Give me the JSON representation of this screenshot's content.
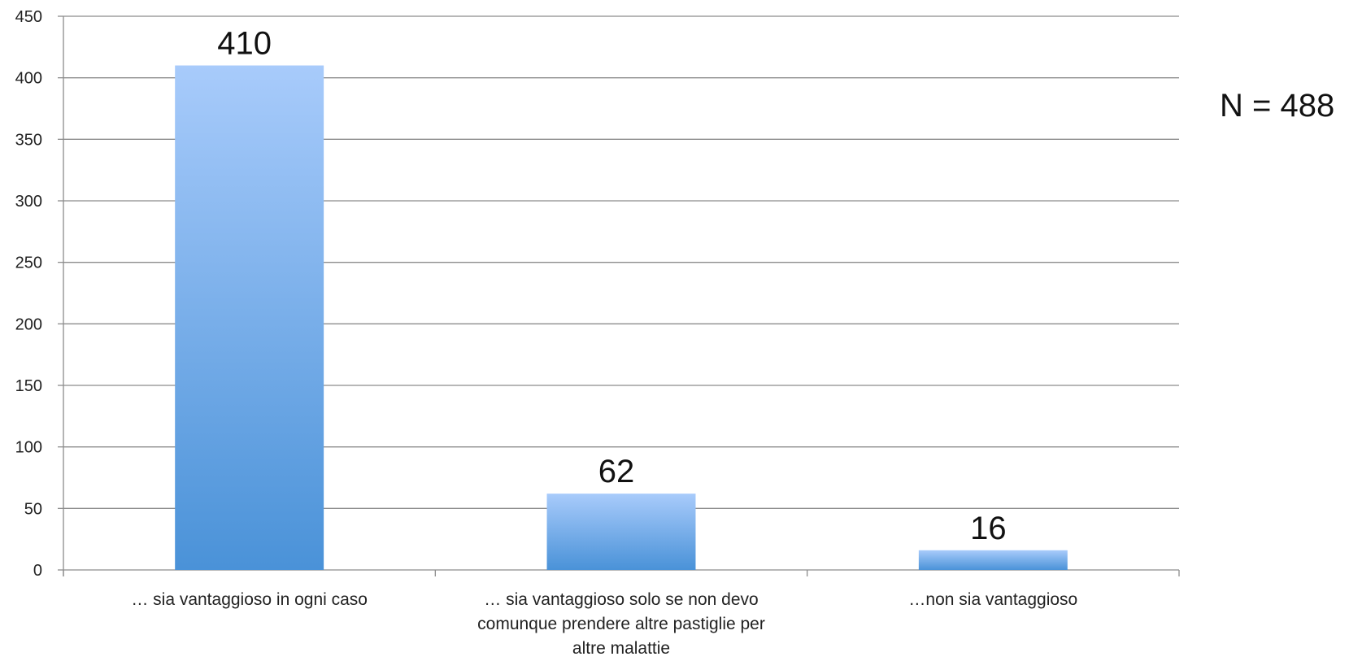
{
  "chart_data": {
    "type": "bar",
    "categories": [
      [
        "… sia vantaggioso in ogni caso"
      ],
      [
        "… sia vantaggioso solo se non devo",
        "comunque prendere altre pastiglie per",
        "altre malattie"
      ],
      [
        "…non sia vantaggioso"
      ]
    ],
    "values": [
      410,
      62,
      16
    ],
    "data_labels": [
      "410",
      "62",
      "16"
    ],
    "ylim": [
      0,
      450
    ],
    "yticks": [
      0,
      50,
      100,
      150,
      200,
      250,
      300,
      350,
      400,
      450
    ],
    "grid": true,
    "annotation": "N = 488",
    "bar_color_top": "#a8cbfb",
    "bar_color_bottom": "#4a92d8"
  }
}
